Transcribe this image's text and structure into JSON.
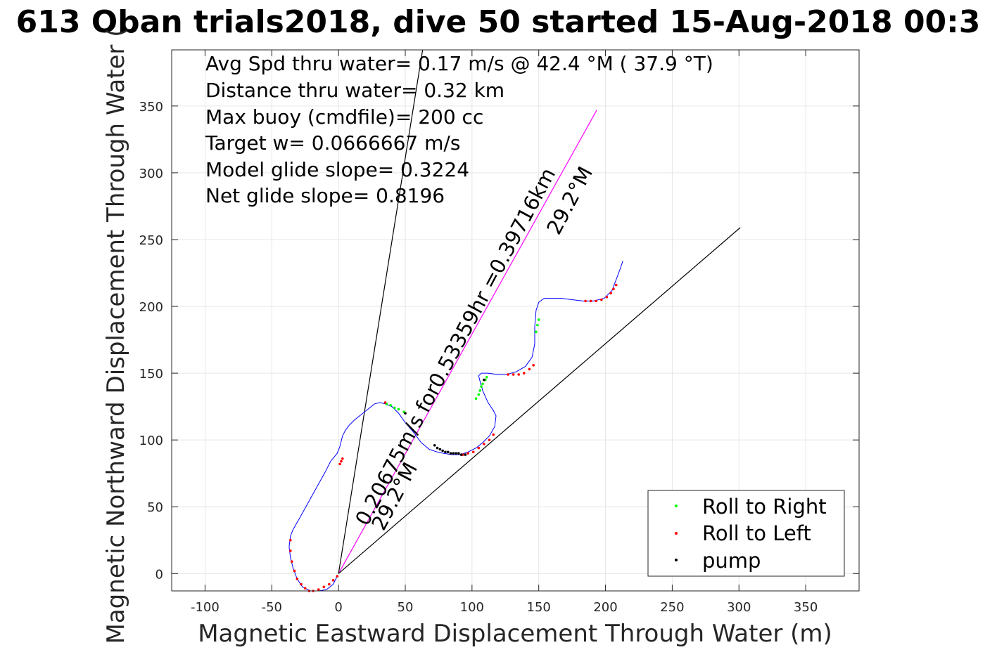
{
  "chart_data": {
    "type": "line",
    "title": "613 Oban trials2018, dive 50 started 15-Aug-2018 00:3",
    "xlabel": "Magnetic Eastward Displacement Through Water (m)",
    "ylabel": "Magnetic Northward Displacement Through Water (",
    "xlim": [
      -125,
      390
    ],
    "ylim": [
      -13,
      392
    ],
    "xticks": [
      -100,
      -50,
      0,
      50,
      100,
      150,
      200,
      250,
      300,
      350
    ],
    "xtick_labels": [
      "-100",
      "-50",
      "0",
      "50",
      "100",
      "150",
      "200",
      "250",
      "300",
      "350"
    ],
    "yticks": [
      0,
      50,
      100,
      150,
      200,
      250,
      300,
      350
    ],
    "ytick_labels": [
      "0",
      "50",
      "100",
      "150",
      "200",
      "250",
      "300",
      "350"
    ],
    "grid": true,
    "legend_position": "bottom-right",
    "annotations": [
      "Avg Spd thru water=  0.17 m/s @  42.4 °M ( 37.9 °T)",
      "Distance thru water=  0.32 km",
      "Max buoy (cmdfile)= 200 cc",
      "Target w= 0.0666667 m/s",
      "Model glide slope= 0.3224",
      "Net glide slope= 0.8196"
    ],
    "rotated_labels": {
      "current_long": "0.20675m/s for0.53359hr =0.39716km",
      "current_long_heading": "29.2°M",
      "current_short": "0.20675m/s",
      "current_short_heading": "29.2°M"
    },
    "track": {
      "color": "#0000ff",
      "x": [
        -1,
        -4,
        -9,
        -15,
        -21,
        -27,
        -31,
        -34,
        -36,
        -37,
        -36,
        -34,
        -30,
        -25,
        -20,
        -15,
        -10,
        -6,
        -1,
        1,
        2,
        3,
        5,
        8,
        12,
        17,
        22,
        27,
        31,
        35,
        40,
        45,
        50,
        56,
        62,
        68,
        74,
        79,
        85,
        91,
        97,
        103,
        108,
        113,
        117,
        118,
        116,
        112,
        108,
        106,
        105,
        107,
        112,
        119,
        126,
        133,
        140,
        145,
        147,
        147,
        148,
        150,
        154,
        160,
        167,
        175,
        183,
        191,
        199,
        205,
        208,
        211,
        213
      ],
      "y": [
        -2,
        -8,
        -12,
        -13,
        -13,
        -10,
        -4,
        4,
        12,
        20,
        28,
        33,
        40,
        49,
        58,
        67,
        76,
        84,
        90,
        95,
        99,
        103,
        107,
        111,
        115,
        119,
        123,
        127,
        128,
        127,
        125,
        120,
        113,
        106,
        98,
        93,
        91,
        90,
        89,
        89,
        91,
        94,
        98,
        103,
        110,
        118,
        122,
        128,
        137,
        144,
        148,
        150,
        150,
        149,
        149,
        151,
        155,
        162,
        172,
        185,
        197,
        203,
        206,
        206,
        206,
        205,
        204,
        204,
        206,
        212,
        220,
        228,
        234
      ]
    },
    "lines": [
      {
        "name": "current",
        "color": "#ff00ff",
        "x": [
          0,
          193.5
        ],
        "y": [
          0,
          347
        ]
      },
      {
        "name": "steep",
        "color": "#000000",
        "x": [
          0,
          63
        ],
        "y": [
          0,
          392
        ]
      },
      {
        "name": "shallow",
        "color": "#000000",
        "x": [
          0,
          301
        ],
        "y": [
          0,
          259
        ]
      }
    ],
    "series": [
      {
        "name": "Roll to Right",
        "color": "#00ff00",
        "x": [
          36,
          39,
          42,
          45,
          49,
          103,
          105,
          106,
          107,
          108,
          110,
          111,
          148,
          149,
          150
        ],
        "y": [
          127,
          126,
          124,
          123,
          121,
          131,
          134,
          137,
          140,
          142,
          145,
          147,
          181,
          186,
          190
        ]
      },
      {
        "name": "Roll to Left",
        "color": "#ff0000",
        "x": [
          -36,
          -36,
          -35,
          -33,
          -31,
          -28,
          -25,
          -22,
          -19,
          -15,
          -11,
          -7,
          -4,
          -1,
          1,
          2,
          3,
          35,
          93,
          97,
          101,
          105,
          109,
          113,
          116,
          127,
          131,
          135,
          139,
          143,
          146,
          185,
          189,
          193,
          197,
          201,
          204,
          206,
          208
        ],
        "y": [
          25,
          17,
          9,
          2,
          -4,
          -8,
          -11,
          -13,
          -13,
          -12,
          -10,
          -8,
          -5,
          -2,
          82,
          84,
          86,
          128,
          89,
          90,
          91,
          94,
          97,
          100,
          104,
          149,
          149,
          149,
          150,
          153,
          156,
          204,
          204,
          204,
          205,
          207,
          210,
          213,
          216
        ]
      },
      {
        "name": "pump",
        "color": "#000000",
        "x": [
          50,
          72,
          74,
          76,
          78,
          80,
          82,
          84,
          86,
          88,
          90,
          92,
          95,
          109
        ],
        "y": [
          120,
          96,
          94,
          93,
          92,
          91,
          91,
          90,
          90,
          90,
          90,
          89,
          89,
          145
        ]
      }
    ],
    "legend": [
      "Roll to Right",
      "Roll to Left",
      "pump"
    ]
  }
}
